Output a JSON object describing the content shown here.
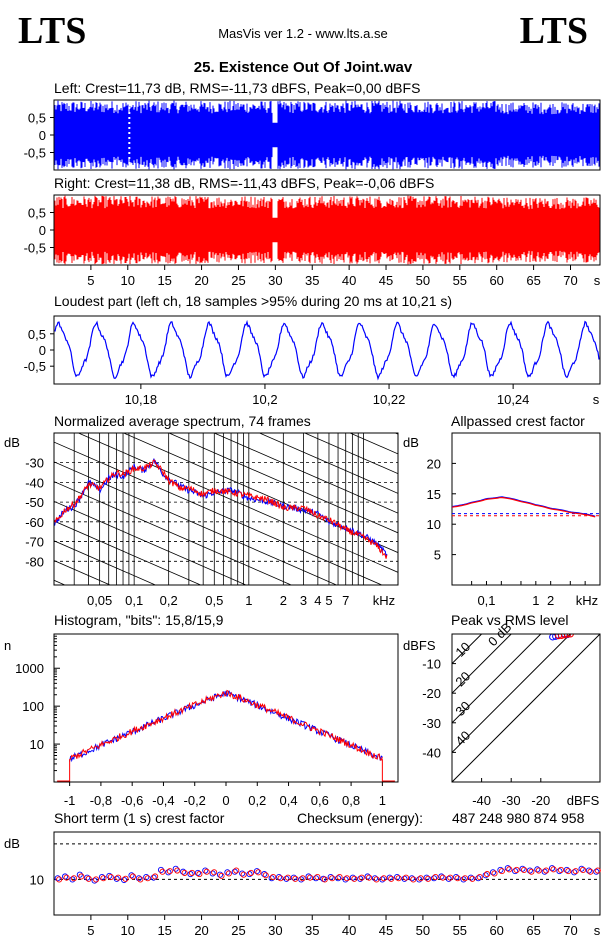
{
  "header": {
    "logo_left": "LTS",
    "logo_right": "LTS",
    "app": "MasVis ver 1.2 - www.lts.a.se",
    "track": "25. Existence Out Of Joint.wav"
  },
  "colors": {
    "left": "#0000ff",
    "right": "#ff0000",
    "grid": "#000000"
  },
  "chart_data": [
    {
      "type": "area",
      "title": "Left: Crest=11,73 dB, RMS=-11,73 dBFS, Peak=0,00 dBFS",
      "series": [
        {
          "name": "Left",
          "crest_db": 11.73,
          "rms_dbfs": -11.73,
          "peak_dbfs": 0.0
        }
      ],
      "ylim": [
        -1,
        1
      ],
      "yticks": [
        "0,5",
        "0",
        "-0,5"
      ],
      "marker_s": 10.21,
      "xlim": [
        0,
        74
      ]
    },
    {
      "type": "area",
      "title": "Right: Crest=11,38 dB, RMS=-11,43 dBFS, Peak=-0,06 dBFS",
      "series": [
        {
          "name": "Right",
          "crest_db": 11.38,
          "rms_dbfs": -11.43,
          "peak_dbfs": -0.06
        }
      ],
      "ylim": [
        -1,
        1
      ],
      "yticks": [
        "0,5",
        "0",
        "-0,5"
      ],
      "xlim": [
        0,
        74
      ],
      "xticks": [
        "5",
        "10",
        "15",
        "20",
        "25",
        "30",
        "35",
        "40",
        "45",
        "50",
        "55",
        "60",
        "65",
        "70"
      ],
      "xunit": "s"
    },
    {
      "type": "line",
      "title": "Loudest part (left  ch, 18 samples >95% during 20 ms at 10,21 s)",
      "xlim": [
        10.166,
        10.254
      ],
      "ylim": [
        -1,
        1
      ],
      "yticks": [
        "0,5",
        "0",
        "-0,5"
      ],
      "xticks": [
        "10,18",
        "10,2",
        "10,22",
        "10,24"
      ],
      "xunit": "s",
      "cycles": 14.5
    },
    {
      "type": "line",
      "title": "Normalized average spectrum, 74 frames",
      "ylabel": "dB",
      "yticks": [
        "-30",
        "-40",
        "-50",
        "-60",
        "-70",
        "-80"
      ],
      "xticks": [
        "0,05",
        "0,1",
        "0,2",
        "0,5",
        "1",
        "2",
        "3",
        "4",
        "5",
        "7",
        "kHz"
      ],
      "ylim": [
        -92,
        -15
      ],
      "x_khz": [
        0.02,
        0.025,
        0.03,
        0.04,
        0.05,
        0.06,
        0.07,
        0.08,
        0.1,
        0.12,
        0.15,
        0.18,
        0.2,
        0.25,
        0.3,
        0.4,
        0.5,
        0.7,
        1,
        1.5,
        2,
        3,
        4,
        5,
        7,
        10,
        13,
        16
      ],
      "series": [
        {
          "name": "Left",
          "values": [
            -61,
            -54,
            -52,
            -40,
            -44,
            -38,
            -36,
            -37,
            -32,
            -34,
            -29,
            -36,
            -38,
            -42,
            -44,
            -47,
            -45,
            -44,
            -48,
            -50,
            -52,
            -54,
            -56,
            -60,
            -63,
            -67,
            -71,
            -77
          ]
        },
        {
          "name": "Right",
          "values": [
            -61,
            -54,
            -51,
            -41,
            -43,
            -38,
            -35,
            -36,
            -33,
            -33,
            -30,
            -35,
            -39,
            -43,
            -43,
            -46,
            -44,
            -45,
            -47,
            -49,
            -53,
            -53,
            -57,
            -59,
            -64,
            -68,
            -72,
            -78
          ]
        }
      ]
    },
    {
      "type": "line",
      "title": "Allpassed crest factor",
      "ylabel": "dB",
      "yticks": [
        "20",
        "15",
        "10",
        "5"
      ],
      "ylim": [
        0,
        25
      ],
      "xticks": [
        "0,1",
        "1",
        "2",
        "kHz"
      ],
      "x_khz": [
        0.02,
        0.05,
        0.1,
        0.2,
        0.5,
        1,
        2,
        5,
        16
      ],
      "series": [
        {
          "name": "Left",
          "values": [
            12.9,
            13.6,
            14.2,
            14.5,
            13.8,
            13.2,
            12.6,
            12.0,
            11.3
          ],
          "dashed": 11.73
        },
        {
          "name": "Right",
          "values": [
            12.8,
            13.5,
            14.1,
            14.4,
            13.7,
            13.1,
            12.5,
            11.9,
            11.2
          ],
          "dashed": 11.38
        }
      ]
    },
    {
      "type": "line",
      "title": "Histogram, \"bits\": 15,8/15,9",
      "ylabel": "n",
      "yticks": [
        "1000",
        "100",
        "10"
      ],
      "xticks": [
        "-1",
        "-0,8",
        "-0,6",
        "-0,4",
        "-0,2",
        "0",
        "0,2",
        "0,4",
        "0,6",
        "0,8",
        "1"
      ],
      "xlim": [
        -1.1,
        1.1
      ],
      "peak_count": 220,
      "edge_count": 4
    },
    {
      "type": "scatter",
      "title": "Peak vs RMS level",
      "ylabel": "dBFS",
      "xlabel": "dBFS",
      "yticks": [
        "-10",
        "-20",
        "-30",
        "-40"
      ],
      "xticks": [
        "-40",
        "-30",
        "-20"
      ],
      "diag_labels": [
        "40",
        "30",
        "20",
        "10",
        "0 dB"
      ],
      "xlim": [
        -50,
        0
      ],
      "ylim": [
        -50,
        0
      ],
      "series": [
        {
          "name": "Left",
          "points": [
            [
              -16,
              -1
            ],
            [
              -14,
              -0.5
            ],
            [
              -12,
              0
            ],
            [
              -15,
              -0.8
            ],
            [
              -11,
              -0.2
            ]
          ]
        },
        {
          "name": "Right",
          "points": [
            [
              -13,
              -0.5
            ],
            [
              -11,
              -0.1
            ],
            [
              -10,
              0
            ],
            [
              -14,
              -0.6
            ],
            [
              -12,
              -0.3
            ]
          ]
        }
      ]
    },
    {
      "type": "scatter",
      "title": "Short term (1 s) crest factor",
      "checksum_label": "Checksum (energy):",
      "checksum_value": "487 248 980 874 958",
      "ylabel": "dB",
      "yticks": [
        "10"
      ],
      "xticks": [
        "5",
        "10",
        "15",
        "20",
        "25",
        "30",
        "35",
        "40",
        "45",
        "50",
        "55",
        "60",
        "65",
        "70"
      ],
      "xunit": "s",
      "ylim": [
        4,
        18
      ],
      "series": [
        {
          "name": "Left",
          "values": [
            10.2,
            10.5,
            10.0,
            10.8,
            10.3,
            9.8,
            10.4,
            10.6,
            10.1,
            9.9,
            10.7,
            10.2,
            10.4,
            10.3,
            11.6,
            11.2,
            11.8,
            11.3,
            10.9,
            11.1,
            11.5,
            11.0,
            10.8,
            11.2,
            11.3,
            11.0,
            10.9,
            11.4,
            10.9,
            10.2,
            10.4,
            10.1,
            10.3,
            10.0,
            10.5,
            10.2,
            10.1,
            10.4,
            10.2,
            10.0,
            10.3,
            10.1,
            10.5,
            10.2,
            10.0,
            10.3,
            10.4,
            10.1,
            10.2,
            10.0,
            10.3,
            10.2,
            10.5,
            10.1,
            10.4,
            10.0,
            10.3,
            10.2,
            10.7,
            11.2,
            11.6,
            11.9,
            11.4,
            11.8,
            11.5,
            11.7,
            11.3,
            11.9,
            11.4,
            11.6,
            11.2,
            11.8,
            11.5,
            11.3
          ]
        },
        {
          "name": "Right",
          "values": [
            10.0,
            10.3,
            10.2,
            10.5,
            10.1,
            10.0,
            10.2,
            10.4,
            10.3,
            10.1,
            10.5,
            10.0,
            10.2,
            10.5,
            11.3,
            11.4,
            11.5,
            11.1,
            11.1,
            10.9,
            11.3,
            11.2,
            10.6,
            11.0,
            11.5,
            10.8,
            11.1,
            11.2,
            10.7,
            10.4,
            10.2,
            10.3,
            10.1,
            10.2,
            10.3,
            10.4,
            10.0,
            10.2,
            10.4,
            10.2,
            10.1,
            10.3,
            10.3,
            10.0,
            10.2,
            10.1,
            10.2,
            10.3,
            10.0,
            10.2,
            10.1,
            10.4,
            10.3,
            10.3,
            10.2,
            10.2,
            10.1,
            10.4,
            10.9,
            11.0,
            11.4,
            11.7,
            11.6,
            11.6,
            11.3,
            11.5,
            11.5,
            11.7,
            11.6,
            11.4,
            11.4,
            11.6,
            11.3,
            11.5
          ]
        }
      ]
    }
  ]
}
